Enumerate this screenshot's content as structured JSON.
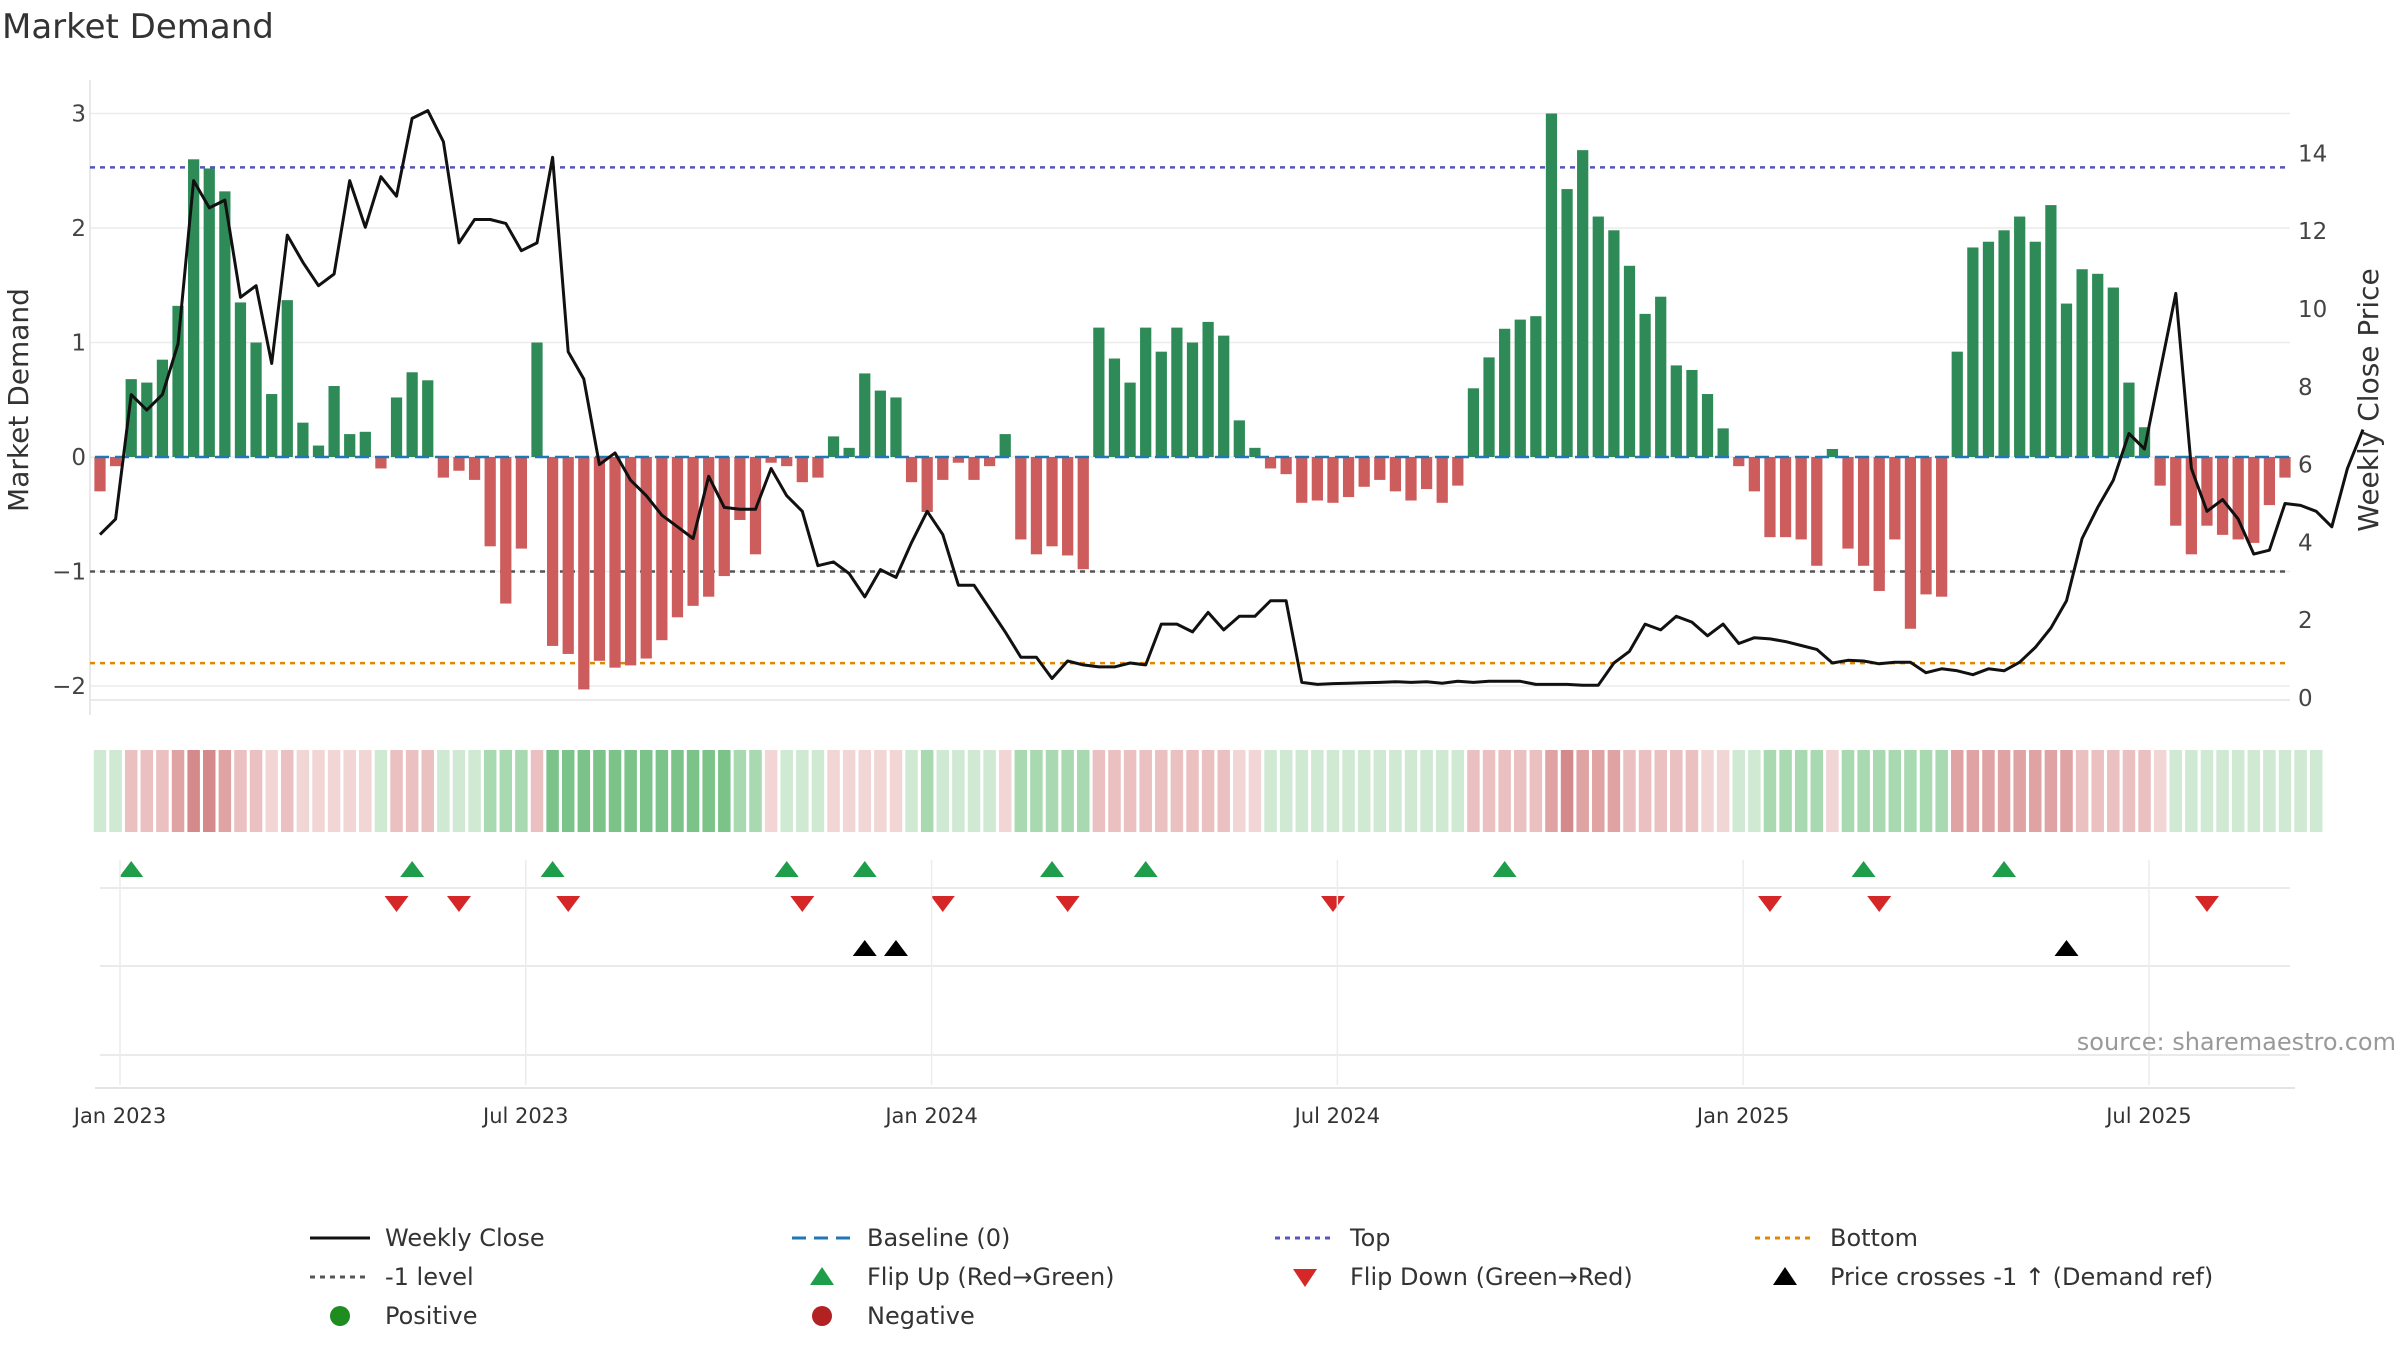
{
  "chart_data": {
    "type": "bar",
    "title": "Market Demand",
    "ylabel": "Market Demand",
    "y2label": "Weekly Close Price",
    "ylim": [
      -2.2,
      3.15
    ],
    "y2lim": [
      0,
      15
    ],
    "yticks": [
      "−2",
      "−1",
      "0",
      "1",
      "2",
      "3"
    ],
    "y2ticks": [
      "0",
      "2",
      "4",
      "6",
      "8",
      "10",
      "12",
      "14"
    ],
    "x_labels": [
      "Jan 2023",
      "Jul 2023",
      "Jan 2024",
      "Jul 2024",
      "Jan 2025",
      "Jul 2025"
    ],
    "reference_lines": {
      "top": 2.53,
      "level": -1.0,
      "bottom": -1.8
    },
    "colors": {
      "positive": "#2e8b57",
      "negative": "#cd5c5c",
      "close": "#111111",
      "baseline": "#1f77b4",
      "top": "#5555bb",
      "level": "#555555",
      "bottom": "#dd8800",
      "flip_up": "#1e9e4a",
      "flip_down": "#d62728",
      "cross": "#000000",
      "dot_positive": "#1e8c1e",
      "dot_negative": "#b22222"
    },
    "series": [
      {
        "name": "Market Demand",
        "values": [
          -0.3,
          -0.08,
          0.68,
          0.65,
          0.85,
          1.32,
          2.6,
          2.52,
          2.32,
          1.35,
          1.0,
          0.55,
          1.37,
          0.3,
          0.1,
          0.62,
          0.2,
          0.22,
          -0.1,
          0.52,
          0.74,
          0.67,
          -0.18,
          -0.12,
          -0.2,
          -0.78,
          -1.28,
          -0.8,
          1.0,
          -1.65,
          -1.72,
          -2.03,
          -1.78,
          -1.84,
          -1.82,
          -1.76,
          -1.6,
          -1.4,
          -1.3,
          -1.22,
          -1.04,
          -0.55,
          -0.85,
          -0.05,
          -0.08,
          -0.22,
          -0.18,
          0.18,
          0.08,
          0.73,
          0.58,
          0.52,
          -0.22,
          -0.48,
          -0.2,
          -0.05,
          -0.2,
          -0.08,
          0.2,
          -0.72,
          -0.85,
          -0.78,
          -0.86,
          -0.98,
          1.13,
          0.86,
          0.65,
          1.13,
          0.92,
          1.13,
          1.0,
          1.18,
          1.06,
          0.32,
          0.08,
          -0.1,
          -0.15,
          -0.4,
          -0.38,
          -0.4,
          -0.35,
          -0.26,
          -0.2,
          -0.3,
          -0.38,
          -0.28,
          -0.4,
          -0.25,
          0.6,
          0.87,
          1.12,
          1.2,
          1.23,
          3.0,
          2.34,
          2.68,
          2.1,
          1.98,
          1.67,
          1.25,
          1.4,
          0.8,
          0.76,
          0.55,
          0.25,
          -0.08,
          -0.3,
          -0.7,
          -0.7,
          -0.72,
          -0.95,
          0.07,
          -0.8,
          -0.95,
          -1.17,
          -0.72,
          -1.5,
          -1.2,
          -1.22,
          0.92,
          1.83,
          1.88,
          1.98,
          2.1,
          1.88,
          2.2,
          1.34,
          1.64,
          1.6,
          1.48,
          0.65,
          0.26,
          -0.25,
          -0.6,
          -0.85,
          -0.6,
          -0.68,
          -0.72,
          -0.75,
          -0.42,
          -0.18
        ]
      },
      {
        "name": "Weekly Close",
        "values": [
          4.2,
          4.6,
          7.8,
          7.4,
          7.8,
          9.1,
          13.3,
          12.6,
          12.8,
          10.3,
          10.6,
          8.6,
          11.9,
          11.2,
          10.6,
          10.9,
          13.3,
          12.1,
          13.4,
          12.9,
          14.9,
          15.1,
          14.3,
          11.7,
          12.3,
          12.3,
          12.2,
          11.5,
          11.7,
          13.9,
          8.9,
          8.2,
          6.0,
          6.3,
          5.6,
          5.2,
          4.7,
          4.4,
          4.1,
          5.7,
          4.9,
          4.85,
          4.85,
          5.9,
          5.2,
          4.8,
          3.4,
          3.5,
          3.2,
          2.6,
          3.3,
          3.1,
          4.0,
          4.8,
          4.2,
          2.9,
          2.9,
          2.3,
          1.7,
          1.05,
          1.05,
          0.5,
          0.95,
          0.85,
          0.8,
          0.8,
          0.9,
          0.85,
          1.9,
          1.9,
          1.7,
          2.2,
          1.75,
          2.1,
          2.1,
          2.5,
          2.5,
          0.4,
          0.35,
          0.37,
          0.38,
          0.39,
          0.4,
          0.42,
          0.4,
          0.42,
          0.38,
          0.43,
          0.4,
          0.43,
          0.43,
          0.43,
          0.35,
          0.35,
          0.35,
          0.33,
          0.33,
          0.9,
          1.2,
          1.9,
          1.75,
          2.1,
          1.95,
          1.6,
          1.9,
          1.4,
          1.55,
          1.52,
          1.45,
          1.35,
          1.25,
          0.9,
          0.97,
          0.95,
          0.88,
          0.92,
          0.92,
          0.65,
          0.75,
          0.7,
          0.6,
          0.75,
          0.7,
          0.92,
          1.3,
          1.8,
          2.5,
          4.1,
          4.9,
          5.6,
          6.8,
          6.4,
          8.4,
          10.4,
          5.9,
          4.8,
          5.1,
          4.6,
          3.7,
          3.8,
          5.0,
          4.95,
          4.8,
          4.4,
          5.9,
          6.9
        ]
      }
    ],
    "heat_strip": [
      1,
      1,
      -2,
      -2,
      -2,
      -3,
      -4,
      -4,
      -3,
      -2,
      -2,
      -1,
      -2,
      -1,
      -1,
      -1,
      -1,
      -1,
      1,
      -2,
      -2,
      -2,
      1,
      1,
      1,
      2,
      2,
      2,
      -2,
      3,
      3,
      3,
      3,
      3,
      3,
      3,
      3,
      3,
      3,
      3,
      3,
      2,
      2,
      -1,
      1,
      1,
      1,
      -1,
      -1,
      -1,
      -1,
      -1,
      1,
      2,
      1,
      1,
      1,
      1,
      -1,
      2,
      2,
      2,
      2,
      2,
      -2,
      -2,
      -2,
      -2,
      -2,
      -2,
      -2,
      -2,
      -2,
      -1,
      -1,
      1,
      1,
      1,
      1,
      1,
      1,
      1,
      1,
      1,
      1,
      1,
      1,
      1,
      -2,
      -2,
      -2,
      -2,
      -2,
      -3,
      -4,
      -3,
      -3,
      -3,
      -2,
      -2,
      -2,
      -2,
      -2,
      -1,
      -1,
      1,
      1,
      2,
      2,
      2,
      2,
      -1,
      2,
      2,
      2,
      2,
      2,
      2,
      2,
      -3,
      -3,
      -3,
      -3,
      -3,
      -3,
      -3,
      -3,
      -2,
      -2,
      -2,
      -2,
      -2,
      -1,
      1,
      1,
      1,
      1,
      1,
      1,
      1,
      1,
      1,
      1
    ],
    "flip_up_weeks": [
      2,
      20,
      29,
      44,
      49,
      61,
      67,
      90,
      113,
      122
    ],
    "flip_down_weeks": [
      19,
      23,
      30,
      45,
      54,
      62,
      79,
      107,
      114,
      135
    ],
    "cross_weeks": [
      49,
      51,
      126
    ],
    "legend": [
      {
        "key": "close",
        "label": "Weekly Close"
      },
      {
        "key": "baseline",
        "label": "Baseline (0)"
      },
      {
        "key": "top",
        "label": "Top"
      },
      {
        "key": "bottom",
        "label": "Bottom"
      },
      {
        "key": "level",
        "label": "-1 level"
      },
      {
        "key": "flip_up",
        "label": "Flip Up (Red→Green)"
      },
      {
        "key": "flip_down",
        "label": "Flip Down (Green→Red)"
      },
      {
        "key": "cross",
        "label": "Price crosses -1 ↑ (Demand ref)"
      },
      {
        "key": "dot_positive",
        "label": "Positive"
      },
      {
        "key": "dot_negative",
        "label": "Negative"
      }
    ],
    "source": "source: sharemaestro.com"
  }
}
